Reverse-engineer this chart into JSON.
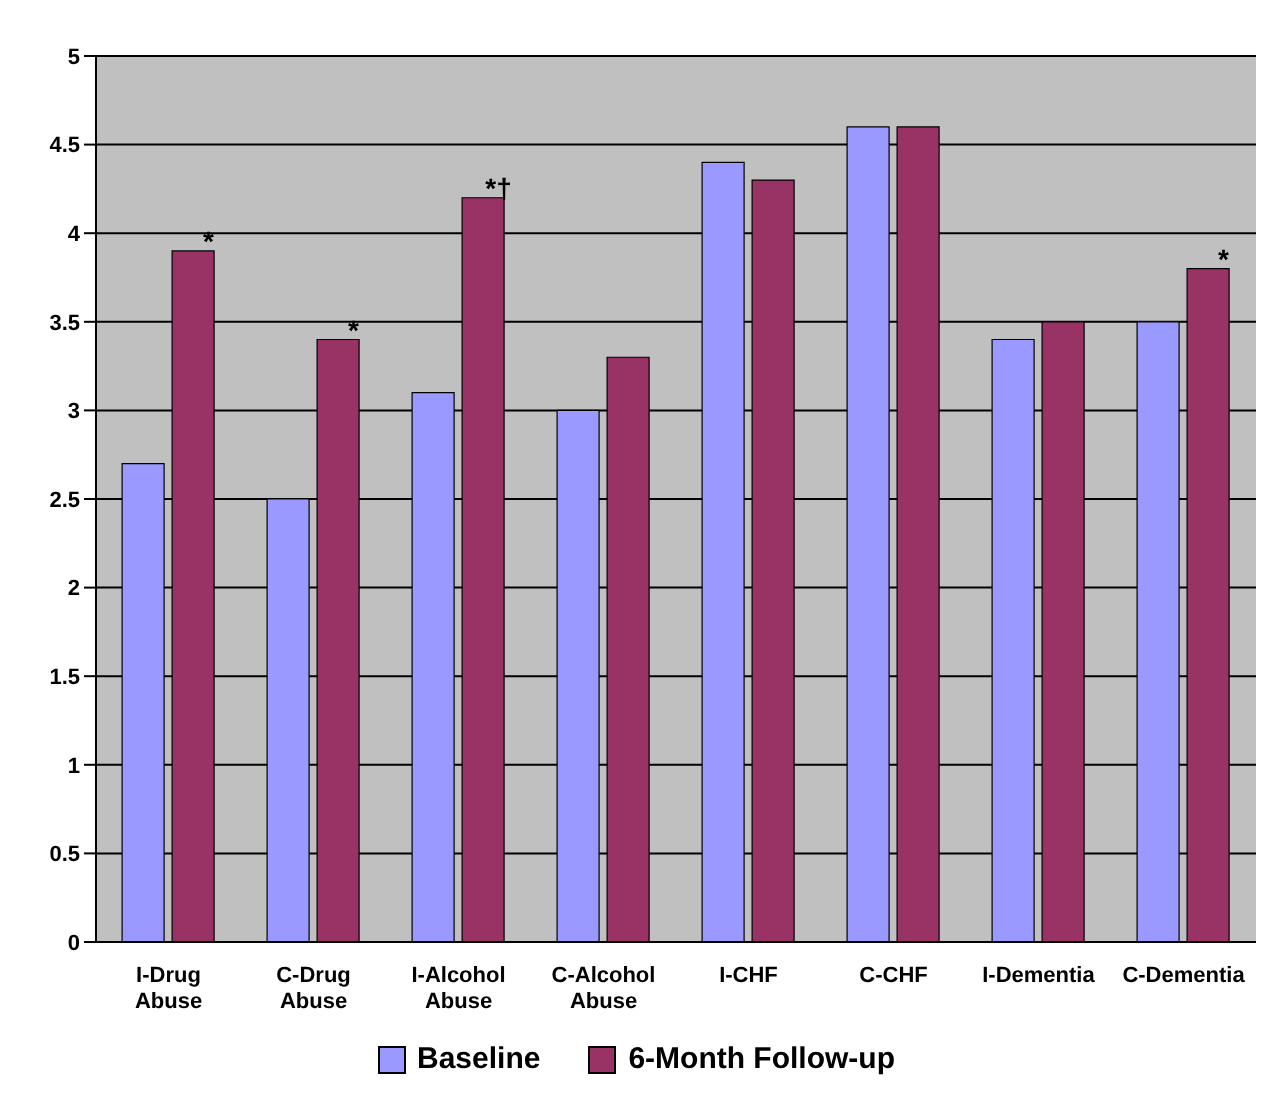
{
  "chart_data": {
    "type": "bar",
    "categories": [
      "I-Drug Abuse",
      "C-Drug Abuse",
      "I-Alcohol Abuse",
      "C-Alcohol Abuse",
      "I-CHF",
      "C-CHF",
      "I-Dementia",
      "C-Dementia"
    ],
    "series": [
      {
        "name": "Baseline",
        "color": "#9999ff",
        "values": [
          2.7,
          2.5,
          3.1,
          3.0,
          4.4,
          4.6,
          3.4,
          3.5
        ]
      },
      {
        "name": "6-Month Follow-up",
        "color": "#993366",
        "values": [
          3.9,
          3.4,
          4.2,
          3.3,
          4.3,
          4.6,
          3.5,
          3.8
        ]
      }
    ],
    "ylim": [
      0,
      5
    ],
    "yticks": [
      0,
      0.5,
      1,
      1.5,
      2,
      2.5,
      3,
      3.5,
      4,
      4.5,
      5
    ],
    "grid": "y",
    "legend": "bottom",
    "annotations": [
      {
        "text": "*",
        "x": "I-Drug Abuse",
        "y": 3.9
      },
      {
        "text": "*",
        "x": "C-Drug Abuse",
        "y": 3.4
      },
      {
        "text": "*†",
        "x": "I-Alcohol Abuse",
        "y": 4.2
      },
      {
        "text": "*",
        "x": "C-Dementia",
        "y": 3.8
      }
    ]
  }
}
